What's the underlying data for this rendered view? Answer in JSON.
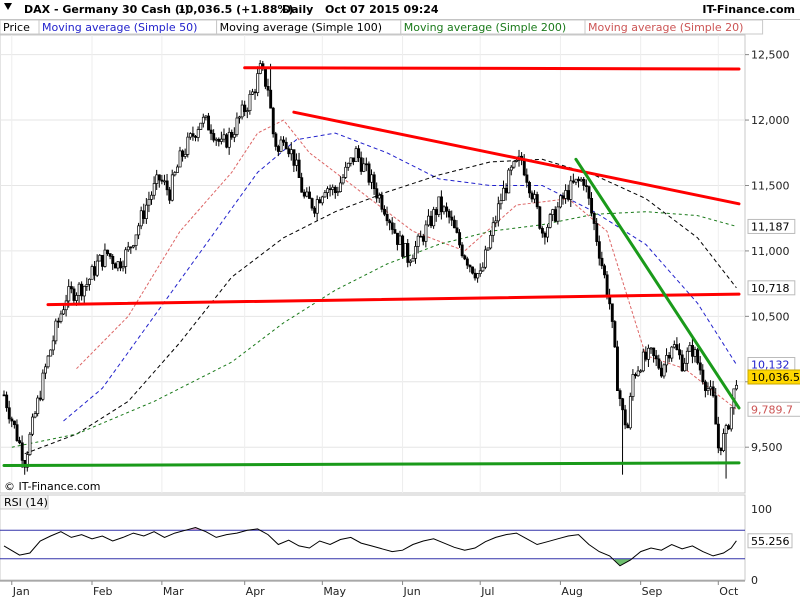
{
  "header": {
    "instrument": "DAX - Germany 30 Cash (-)",
    "quote": "10,036.5 (+1.88%)",
    "timeframe": "Daily",
    "datetime": "Oct 07 2015 09:24",
    "brand": "IT-Finance.com"
  },
  "legend": [
    {
      "label": "Price",
      "color": "#000000"
    },
    {
      "label": "Moving average (Simple 50)",
      "color": "#2222cc"
    },
    {
      "label": "Moving average (Simple 100)",
      "color": "#000000"
    },
    {
      "label": "Moving average (Simple 200)",
      "color": "#1a7a1a"
    },
    {
      "label": "Moving average (Simple 20)",
      "color": "#cc5555"
    }
  ],
  "copyright": "© IT-Finance.com",
  "chart_data": {
    "type": "candlestick",
    "price_ylim": [
      9150,
      12650
    ],
    "y_ticks": [
      {
        "value": 12500,
        "label": "12,500"
      },
      {
        "value": 12000,
        "label": "12,000"
      },
      {
        "value": 11500,
        "label": "11,500"
      },
      {
        "value": 11000,
        "label": "11,000"
      },
      {
        "value": 10500,
        "label": "10,500"
      },
      {
        "value": 10000,
        "label": ""
      },
      {
        "value": 9500,
        "label": "9,500"
      }
    ],
    "x_ticks": [
      "Jan",
      "Feb",
      "Mar",
      "Apr",
      "May",
      "Jun",
      "Jul",
      "Aug",
      "Sep",
      "Oct"
    ],
    "x_tick_days": [
      5,
      36,
      63,
      95,
      125,
      156,
      186,
      217,
      248,
      278
    ],
    "x_range_days": [
      2,
      286
    ],
    "value_labels": [
      {
        "key": "ma200",
        "label": "11,187",
        "value": 11187,
        "color": "#000000",
        "bg": "#ffffff"
      },
      {
        "key": "ma100",
        "label": "10,718",
        "value": 10718,
        "color": "#000000",
        "bg": "#ffffff"
      },
      {
        "key": "ma50",
        "label": "10,132",
        "value": 10132,
        "color": "#2222cc",
        "bg": "#ffffff"
      },
      {
        "key": "last",
        "label": "10,036.5",
        "value": 10036.5,
        "color": "#000000",
        "bg": "#ffd700"
      },
      {
        "key": "ma20",
        "label": "9,789.7",
        "value": 9789.7,
        "color": "#cc5555",
        "bg": "#ffffff"
      }
    ],
    "close_path": [
      [
        2,
        9900
      ],
      [
        6,
        9650
      ],
      [
        10,
        9400
      ],
      [
        14,
        9750
      ],
      [
        18,
        10100
      ],
      [
        22,
        10400
      ],
      [
        26,
        10650
      ],
      [
        30,
        10700
      ],
      [
        34,
        10750
      ],
      [
        38,
        10900
      ],
      [
        42,
        10980
      ],
      [
        46,
        10900
      ],
      [
        50,
        11000
      ],
      [
        54,
        11200
      ],
      [
        58,
        11400
      ],
      [
        62,
        11550
      ],
      [
        66,
        11450
      ],
      [
        70,
        11700
      ],
      [
        74,
        11850
      ],
      [
        78,
        12000
      ],
      [
        82,
        11950
      ],
      [
        86,
        11800
      ],
      [
        90,
        11900
      ],
      [
        94,
        12050
      ],
      [
        98,
        12200
      ],
      [
        101,
        12380
      ],
      [
        104,
        12250
      ],
      [
        106,
        11900
      ],
      [
        108,
        11750
      ],
      [
        110,
        11900
      ],
      [
        114,
        11700
      ],
      [
        118,
        11400
      ],
      [
        122,
        11350
      ],
      [
        126,
        11500
      ],
      [
        130,
        11450
      ],
      [
        134,
        11600
      ],
      [
        138,
        11750
      ],
      [
        142,
        11600
      ],
      [
        146,
        11450
      ],
      [
        150,
        11300
      ],
      [
        154,
        11100
      ],
      [
        158,
        10950
      ],
      [
        162,
        11050
      ],
      [
        166,
        11200
      ],
      [
        170,
        11350
      ],
      [
        174,
        11250
      ],
      [
        178,
        11050
      ],
      [
        182,
        10900
      ],
      [
        186,
        10800
      ],
      [
        190,
        11100
      ],
      [
        194,
        11400
      ],
      [
        198,
        11600
      ],
      [
        202,
        11700
      ],
      [
        206,
        11450
      ],
      [
        210,
        11150
      ],
      [
        214,
        11250
      ],
      [
        218,
        11400
      ],
      [
        222,
        11500
      ],
      [
        226,
        11550
      ],
      [
        230,
        11200
      ],
      [
        233,
        10900
      ],
      [
        236,
        10600
      ],
      [
        239,
        10000
      ],
      [
        241,
        9750
      ],
      [
        243,
        9650
      ],
      [
        245,
        10050
      ],
      [
        248,
        10150
      ],
      [
        252,
        10200
      ],
      [
        256,
        10100
      ],
      [
        260,
        10300
      ],
      [
        264,
        10150
      ],
      [
        268,
        10250
      ],
      [
        272,
        10050
      ],
      [
        276,
        9850
      ],
      [
        278,
        9500
      ],
      [
        281,
        9600
      ],
      [
        283,
        9800
      ],
      [
        285,
        10036.5
      ]
    ],
    "wicks": [
      [
        10,
        9370
      ],
      [
        241,
        9290
      ],
      [
        281,
        9260
      ],
      [
        105,
        12430
      ]
    ],
    "ma20": [
      [
        30,
        10100
      ],
      [
        50,
        10500
      ],
      [
        70,
        11150
      ],
      [
        90,
        11600
      ],
      [
        100,
        11900
      ],
      [
        110,
        12000
      ],
      [
        120,
        11750
      ],
      [
        140,
        11450
      ],
      [
        160,
        11150
      ],
      [
        180,
        11000
      ],
      [
        200,
        11350
      ],
      [
        220,
        11400
      ],
      [
        235,
        11150
      ],
      [
        250,
        10200
      ],
      [
        265,
        10100
      ],
      [
        285,
        9789.7
      ]
    ],
    "ma50": [
      [
        25,
        9700
      ],
      [
        40,
        9950
      ],
      [
        60,
        10500
      ],
      [
        80,
        11050
      ],
      [
        100,
        11600
      ],
      [
        115,
        11850
      ],
      [
        130,
        11900
      ],
      [
        150,
        11750
      ],
      [
        170,
        11550
      ],
      [
        190,
        11500
      ],
      [
        210,
        11500
      ],
      [
        230,
        11300
      ],
      [
        250,
        11050
      ],
      [
        270,
        10600
      ],
      [
        285,
        10132
      ]
    ],
    "ma100": [
      [
        10,
        9450
      ],
      [
        30,
        9600
      ],
      [
        50,
        9850
      ],
      [
        70,
        10300
      ],
      [
        90,
        10800
      ],
      [
        110,
        11100
      ],
      [
        130,
        11300
      ],
      [
        150,
        11450
      ],
      [
        170,
        11580
      ],
      [
        190,
        11680
      ],
      [
        210,
        11700
      ],
      [
        230,
        11580
      ],
      [
        250,
        11400
      ],
      [
        270,
        11100
      ],
      [
        285,
        10718
      ]
    ],
    "ma200": [
      [
        5,
        9500
      ],
      [
        30,
        9600
      ],
      [
        60,
        9850
      ],
      [
        90,
        10150
      ],
      [
        110,
        10450
      ],
      [
        130,
        10700
      ],
      [
        150,
        10900
      ],
      [
        170,
        11050
      ],
      [
        190,
        11150
      ],
      [
        210,
        11200
      ],
      [
        230,
        11280
      ],
      [
        250,
        11300
      ],
      [
        270,
        11270
      ],
      [
        285,
        11187
      ]
    ],
    "trendlines": [
      {
        "color": "#ff0000",
        "points": [
          [
            95,
            12400
          ],
          [
            286,
            12390
          ]
        ]
      },
      {
        "color": "#ff0000",
        "points": [
          [
            114,
            12060
          ],
          [
            286,
            11360
          ]
        ]
      },
      {
        "color": "#ff0000",
        "points": [
          [
            19,
            10590
          ],
          [
            286,
            10670
          ]
        ]
      },
      {
        "color": "#1a9a1a",
        "points": [
          [
            2,
            9360
          ],
          [
            286,
            9380
          ]
        ]
      },
      {
        "color": "#1a9a1a",
        "points": [
          [
            223,
            11700
          ],
          [
            286,
            9800
          ]
        ]
      }
    ],
    "rsi": {
      "label": "RSI (14)",
      "ylim": [
        0,
        100
      ],
      "ticks": [
        {
          "value": 100,
          "label": "100"
        },
        {
          "value": 0,
          "label": "0"
        }
      ],
      "upper_band": 70,
      "lower_band": 30,
      "current": {
        "value": 55.256,
        "label": "55.256"
      },
      "series": [
        [
          2,
          48
        ],
        [
          8,
          35
        ],
        [
          12,
          38
        ],
        [
          16,
          55
        ],
        [
          20,
          62
        ],
        [
          24,
          68
        ],
        [
          28,
          60
        ],
        [
          32,
          64
        ],
        [
          36,
          58
        ],
        [
          40,
          62
        ],
        [
          44,
          55
        ],
        [
          48,
          60
        ],
        [
          52,
          66
        ],
        [
          56,
          62
        ],
        [
          60,
          68
        ],
        [
          64,
          60
        ],
        [
          68,
          66
        ],
        [
          72,
          70
        ],
        [
          76,
          74
        ],
        [
          80,
          68
        ],
        [
          84,
          60
        ],
        [
          88,
          64
        ],
        [
          92,
          66
        ],
        [
          96,
          70
        ],
        [
          100,
          72
        ],
        [
          104,
          64
        ],
        [
          108,
          50
        ],
        [
          112,
          56
        ],
        [
          116,
          48
        ],
        [
          120,
          45
        ],
        [
          124,
          55
        ],
        [
          128,
          50
        ],
        [
          132,
          57
        ],
        [
          136,
          60
        ],
        [
          140,
          52
        ],
        [
          144,
          48
        ],
        [
          148,
          44
        ],
        [
          152,
          40
        ],
        [
          156,
          42
        ],
        [
          160,
          50
        ],
        [
          164,
          55
        ],
        [
          168,
          58
        ],
        [
          172,
          52
        ],
        [
          176,
          46
        ],
        [
          180,
          42
        ],
        [
          184,
          45
        ],
        [
          188,
          54
        ],
        [
          192,
          60
        ],
        [
          196,
          64
        ],
        [
          200,
          66
        ],
        [
          204,
          58
        ],
        [
          208,
          50
        ],
        [
          212,
          54
        ],
        [
          216,
          58
        ],
        [
          220,
          62
        ],
        [
          224,
          64
        ],
        [
          228,
          50
        ],
        [
          232,
          40
        ],
        [
          236,
          34
        ],
        [
          240,
          20
        ],
        [
          244,
          28
        ],
        [
          248,
          40
        ],
        [
          252,
          45
        ],
        [
          256,
          42
        ],
        [
          260,
          50
        ],
        [
          264,
          44
        ],
        [
          268,
          48
        ],
        [
          272,
          40
        ],
        [
          276,
          34
        ],
        [
          280,
          38
        ],
        [
          283,
          45
        ],
        [
          285,
          55.256
        ]
      ]
    }
  }
}
